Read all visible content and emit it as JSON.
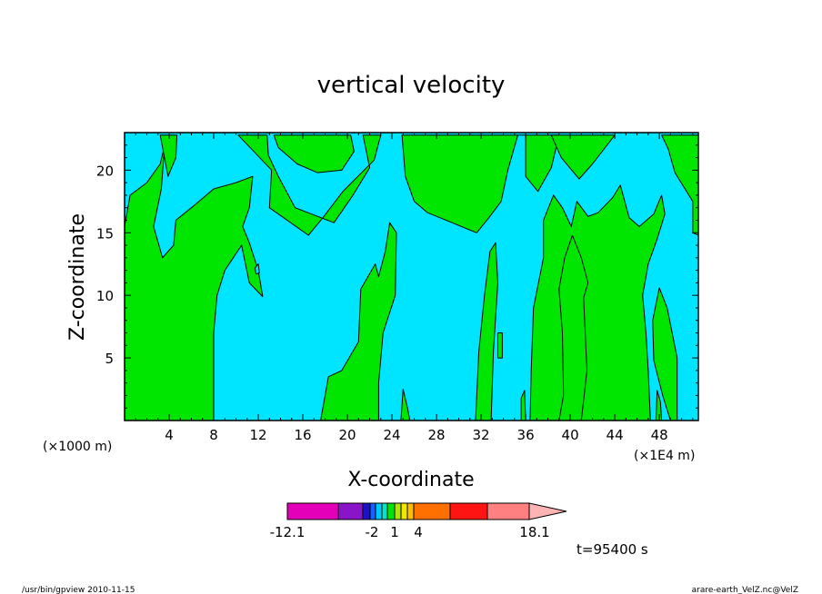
{
  "chart_data": {
    "type": "heatmap",
    "title": "vertical velocity",
    "xlabel": "X-coordinate",
    "ylabel": "Z-coordinate",
    "x_unit_left": "(×1000 m)",
    "x_unit_right": "(×1E4 m)",
    "xlim": [
      0,
      51.5
    ],
    "ylim": [
      0,
      23
    ],
    "x_ticks": [
      4,
      8,
      12,
      16,
      20,
      24,
      28,
      32,
      36,
      40,
      44,
      48
    ],
    "y_ticks": [
      5,
      10,
      15,
      20
    ],
    "x_tick_labels": [
      "4",
      "8",
      "12",
      "16",
      "20",
      "24",
      "28",
      "32",
      "36",
      "40",
      "44",
      "48"
    ],
    "y_tick_labels": [
      "5",
      "10",
      "15",
      "20"
    ],
    "background_color": "#00e5ff",
    "region_color": "#00e600",
    "regions": [
      [
        [
          0,
          0
        ],
        [
          0,
          15.5
        ],
        [
          0.5,
          18
        ],
        [
          2,
          19
        ],
        [
          3.2,
          20.5
        ],
        [
          3.6,
          22
        ],
        [
          3.3,
          18.5
        ],
        [
          2.6,
          15.5
        ],
        [
          3.4,
          13
        ],
        [
          4.4,
          14
        ],
        [
          4.6,
          16
        ],
        [
          6,
          17
        ],
        [
          8,
          18.5
        ],
        [
          10,
          19
        ],
        [
          11.5,
          19.5
        ],
        [
          11.2,
          17
        ],
        [
          10.6,
          15.5
        ],
        [
          11.2,
          14.2
        ],
        [
          12,
          12
        ],
        [
          12.4,
          9.9
        ],
        [
          11.2,
          11
        ],
        [
          10.5,
          14
        ],
        [
          9,
          12
        ],
        [
          8.3,
          10
        ],
        [
          8,
          7
        ],
        [
          8,
          0
        ]
      ],
      [
        [
          10.2,
          22.8
        ],
        [
          12.8,
          22.8
        ],
        [
          12.9,
          21.2
        ],
        [
          13.8,
          19.5
        ],
        [
          15.3,
          17
        ],
        [
          18.8,
          15.8
        ],
        [
          20.5,
          18
        ],
        [
          22,
          20.2
        ],
        [
          21.4,
          22.8
        ],
        [
          23,
          22.8
        ],
        [
          22.4,
          20.8
        ],
        [
          19.6,
          18.3
        ],
        [
          17.8,
          16.2
        ],
        [
          16.5,
          14.8
        ],
        [
          13,
          17
        ],
        [
          13.2,
          20
        ]
      ],
      [
        [
          20.3,
          22.8
        ],
        [
          20.6,
          21.5
        ],
        [
          19.5,
          20
        ],
        [
          17.3,
          19.8
        ],
        [
          15.5,
          20.5
        ],
        [
          13.8,
          21.8
        ],
        [
          13.4,
          22.8
        ]
      ],
      [
        [
          3.2,
          22.8
        ],
        [
          4.7,
          22.8
        ],
        [
          4.6,
          21
        ],
        [
          3.9,
          19.5
        ]
      ],
      [
        [
          17.6,
          0
        ],
        [
          18.3,
          3.5
        ],
        [
          19.5,
          4
        ],
        [
          21,
          6.3
        ],
        [
          21.2,
          10.5
        ],
        [
          22.5,
          12.5
        ],
        [
          22.8,
          11.5
        ],
        [
          23.4,
          13.5
        ],
        [
          23.8,
          15.8
        ],
        [
          24.4,
          15
        ],
        [
          24.3,
          10
        ],
        [
          23.2,
          7
        ],
        [
          22.8,
          3
        ],
        [
          22.8,
          0
        ]
      ],
      [
        [
          24.9,
          22.8
        ],
        [
          25.2,
          19.5
        ],
        [
          26,
          17.5
        ],
        [
          27.2,
          16.6
        ],
        [
          29.4,
          15.8
        ],
        [
          31.6,
          15
        ],
        [
          32.7,
          16.2
        ],
        [
          33.8,
          17.5
        ],
        [
          34.4,
          20
        ],
        [
          35.3,
          22.8
        ],
        [
          36,
          22.8
        ],
        [
          36,
          19.5
        ],
        [
          37.1,
          18.3
        ],
        [
          38.3,
          20.2
        ],
        [
          39,
          22.8
        ]
      ],
      [
        [
          38.3,
          22.8
        ],
        [
          39.2,
          21
        ],
        [
          40.8,
          19.3
        ],
        [
          42,
          20.5
        ],
        [
          44,
          22.8
        ]
      ],
      [
        [
          31.5,
          0
        ],
        [
          31.8,
          5.5
        ],
        [
          32.3,
          10
        ],
        [
          32.8,
          13.5
        ],
        [
          33.3,
          14.2
        ],
        [
          33.5,
          11
        ],
        [
          33.1,
          5.5
        ],
        [
          32.9,
          0
        ]
      ],
      [
        [
          33.5,
          7
        ],
        [
          33.9,
          7
        ],
        [
          33.9,
          5
        ],
        [
          33.5,
          5
        ]
      ],
      [
        [
          35.6,
          1.8
        ],
        [
          35.9,
          2.4
        ],
        [
          36,
          0
        ],
        [
          35.6,
          0
        ]
      ],
      [
        [
          36.4,
          0
        ],
        [
          36.5,
          4
        ],
        [
          36.7,
          9
        ],
        [
          37.6,
          13
        ],
        [
          37.6,
          16
        ],
        [
          38.5,
          18
        ],
        [
          39.3,
          17
        ],
        [
          40.1,
          15.5
        ],
        [
          40.6,
          17.5
        ],
        [
          41.6,
          16.3
        ],
        [
          42.5,
          16.6
        ],
        [
          43.8,
          17.8
        ],
        [
          44.5,
          18.8
        ],
        [
          45.3,
          16.2
        ],
        [
          46.2,
          15.5
        ],
        [
          47.5,
          16.5
        ],
        [
          48.2,
          18
        ],
        [
          48.5,
          16.5
        ],
        [
          47.8,
          14.5
        ],
        [
          47,
          12.5
        ],
        [
          46.5,
          10
        ],
        [
          46.8,
          7
        ],
        [
          47,
          4
        ],
        [
          47.2,
          0
        ]
      ],
      [
        [
          41.2,
          9.8
        ],
        [
          41.6,
          11
        ],
        [
          41,
          13
        ],
        [
          40.2,
          14.8
        ],
        [
          39.5,
          13
        ],
        [
          39,
          10.5
        ],
        [
          39.3,
          7
        ],
        [
          39.4,
          2
        ],
        [
          39,
          0
        ],
        [
          41,
          0
        ],
        [
          41.5,
          4
        ]
      ],
      [
        [
          48,
          10.6
        ],
        [
          48.7,
          9
        ],
        [
          49.6,
          5
        ],
        [
          49.6,
          0
        ],
        [
          49,
          0
        ],
        [
          48.3,
          2
        ],
        [
          47.5,
          4.8
        ],
        [
          47.4,
          8
        ]
      ],
      [
        [
          47.7,
          0
        ],
        [
          47.8,
          2.4
        ],
        [
          48.1,
          1.5
        ],
        [
          48.2,
          0
        ]
      ],
      [
        [
          24.8,
          0
        ],
        [
          25,
          2.5
        ],
        [
          25.4,
          1
        ],
        [
          25.6,
          0
        ]
      ],
      [
        [
          48.2,
          22.8
        ],
        [
          48.8,
          21.7
        ],
        [
          49.4,
          19.8
        ],
        [
          51,
          17.5
        ],
        [
          51,
          15
        ],
        [
          51.5,
          14.8
        ],
        [
          51.5,
          22.8
        ]
      ]
    ],
    "holes": [
      [
        [
          11.7,
          12.2
        ],
        [
          12,
          12.5
        ],
        [
          12.1,
          11.8
        ],
        [
          11.8,
          11.7
        ]
      ]
    ],
    "colorbar": {
      "colors": [
        "#e400b8",
        "#8a14c8",
        "#1a14c8",
        "#1a60ff",
        "#00c8ff",
        "#00e5c8",
        "#00e600",
        "#b0e600",
        "#f0e600",
        "#ffbe00",
        "#ff7000",
        "#ff1414",
        "#ff8080"
      ],
      "arrow_color": "#ffb4b4",
      "tick_labels": [
        "-12.1",
        "-2",
        "1",
        "4",
        "18.1"
      ]
    },
    "time_label": "t=95400 s"
  },
  "footer": {
    "left": "/usr/bin/gpview  2010-11-15",
    "right": "arare-earth_VelZ.nc@VelZ"
  }
}
